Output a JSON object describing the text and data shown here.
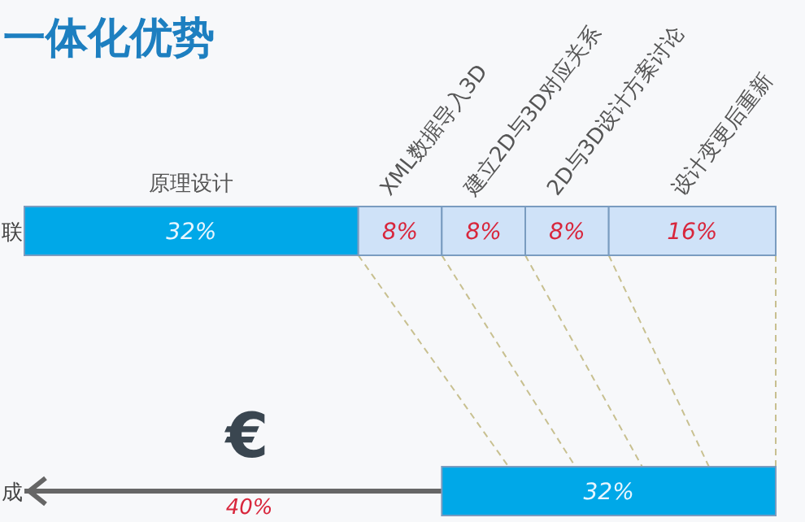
{
  "chart_data": {
    "type": "bar",
    "title": "一体化优势",
    "orientation": "horizontal",
    "stacked": true,
    "categories": [
      "联",
      "成"
    ],
    "tick_labels": "y",
    "series": [
      {
        "color": "#666666",
        "values": [
          null,
          40
        ],
        "value_labels": [
          null,
          "40%"
        ]
      },
      {
        "name": "原理设计",
        "color": "#00a8e8",
        "values": [
          32,
          32
        ],
        "value_labels": [
          "32%",
          "32%"
        ]
      },
      {
        "name": "XML数据导入3D",
        "color": "#cfe2f8",
        "values": [
          8,
          null
        ],
        "value_labels": [
          "8%",
          null
        ]
      },
      {
        "name": "建立2D与3D对应关系",
        "color": "#cfe2f8",
        "values": [
          8,
          null
        ],
        "value_labels": [
          "8%",
          null
        ]
      },
      {
        "name": "2D与3D设计方案讨论",
        "color": "#cfe2f8",
        "values": [
          8,
          null
        ],
        "value_labels": [
          "8%",
          null
        ]
      },
      {
        "name": "设计变更后重新",
        "color": "#cfe2f8",
        "values": [
          16,
          null
        ],
        "value_labels": [
          "16%",
          null
        ]
      }
    ],
    "annotations": [
      "€"
    ]
  }
}
